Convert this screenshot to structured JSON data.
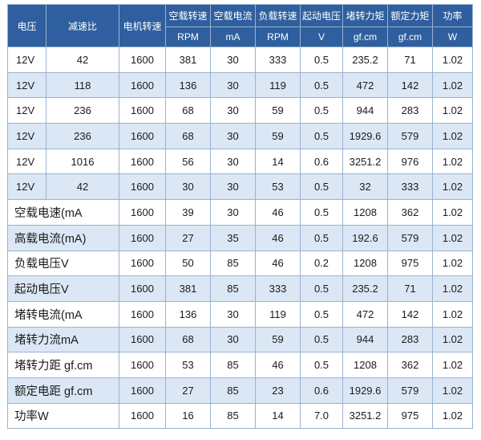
{
  "header": {
    "row1": [
      "电压",
      "减速比",
      "电机转速",
      "空载转速",
      "空载电流",
      "负载转速",
      "起动电压",
      "堵转力矩",
      "额定力矩",
      "功率"
    ],
    "row2": [
      "RPM",
      "mA",
      "RPM",
      "V",
      "gf.cm",
      "gf.cm",
      "W"
    ]
  },
  "rows": [
    [
      "12V",
      "42",
      "1600",
      "381",
      "30",
      "333",
      "0.5",
      "235.2",
      "71",
      "1.02"
    ],
    [
      "12V",
      "118",
      "1600",
      "136",
      "30",
      "119",
      "0.5",
      "472",
      "142",
      "1.02"
    ],
    [
      "12V",
      "236",
      "1600",
      "68",
      "30",
      "59",
      "0.5",
      "944",
      "283",
      "1.02"
    ],
    [
      "12V",
      "236",
      "1600",
      "68",
      "30",
      "59",
      "0.5",
      "1929.6",
      "579",
      "1.02"
    ],
    [
      "12V",
      "1016",
      "1600",
      "56",
      "30",
      "14",
      "0.6",
      "3251.2",
      "976",
      "1.02"
    ],
    [
      "12V",
      "42",
      "1600",
      "30",
      "30",
      "53",
      "0.5",
      "32",
      "333",
      "1.02"
    ],
    [
      "空载电速(mA",
      "1600",
      "39",
      "30",
      "46",
      "0.5",
      "1208",
      "362",
      "1.02"
    ],
    [
      "高载电流(mA)",
      "1600",
      "27",
      "35",
      "46",
      "0.5",
      "192.6",
      "579",
      "1.02"
    ],
    [
      "负载电压V",
      "1600",
      "50",
      "85",
      "46",
      "0.2",
      "1208",
      "975",
      "1.02"
    ],
    [
      "起动电压V",
      "1600",
      "381",
      "85",
      "333",
      "0.5",
      "235.2",
      "71",
      "1.02"
    ],
    [
      "堵转电流(mA",
      "1600",
      "136",
      "30",
      "119",
      "0.5",
      "472",
      "142",
      "1.02"
    ],
    [
      "堵转力流mA",
      "1600",
      "68",
      "30",
      "59",
      "0.5",
      "944",
      "283",
      "1.02"
    ],
    [
      "堵转力距 gf.cm",
      "1600",
      "53",
      "85",
      "46",
      "0.5",
      "1208",
      "362",
      "1.02"
    ],
    [
      "额定电距 gf.cm",
      "1600",
      "27",
      "85",
      "23",
      "0.6",
      "1929.6",
      "579",
      "1.02"
    ],
    [
      "功率W",
      "1600",
      "16",
      "85",
      "14",
      "7.0",
      "3251.2",
      "975",
      "1.02"
    ]
  ]
}
